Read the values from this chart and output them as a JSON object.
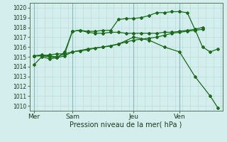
{
  "xlabel": "Pression niveau de la mer( hPa )",
  "bg_color": "#d4eeed",
  "grid_color_minor": "#b8d8d8",
  "grid_color_major": "#88b8b8",
  "line_color": "#1a6b1a",
  "ylim": [
    1009.5,
    1020.5
  ],
  "yticks": [
    1010,
    1011,
    1012,
    1013,
    1014,
    1015,
    1016,
    1017,
    1018,
    1019,
    1020
  ],
  "day_labels": [
    "Mer",
    "Sam",
    "Jeu",
    "Ven"
  ],
  "day_positions": [
    0.0,
    2.5,
    6.5,
    9.5
  ],
  "xlim": [
    -0.3,
    12.3
  ],
  "series1_x": [
    0,
    0.5,
    1.0,
    1.5,
    2.0,
    2.5,
    3.0,
    3.5,
    4.0,
    4.5,
    5.0,
    5.5,
    6.0,
    6.5,
    7.0,
    7.5,
    8.0,
    8.5,
    9.0,
    9.5,
    10.0,
    10.5,
    11.0
  ],
  "series1_y": [
    1015.1,
    1015.1,
    1015.2,
    1015.3,
    1015.3,
    1015.5,
    1015.6,
    1015.7,
    1015.9,
    1016.0,
    1016.1,
    1016.3,
    1016.5,
    1016.7,
    1016.8,
    1016.9,
    1017.0,
    1017.2,
    1017.4,
    1017.5,
    1017.6,
    1017.7,
    1017.8
  ],
  "series2_x": [
    0,
    0.5,
    1.0,
    1.5,
    2.0,
    2.5,
    3.0,
    3.5,
    4.0,
    4.5,
    5.0,
    5.5,
    6.0,
    6.5,
    7.0,
    7.5,
    8.0,
    8.5,
    9.0,
    9.5,
    10.0,
    10.5,
    11.0
  ],
  "series2_y": [
    1015.1,
    1015.1,
    1015.0,
    1014.9,
    1015.5,
    1017.6,
    1017.7,
    1017.5,
    1017.4,
    1017.4,
    1017.5,
    1017.5,
    1017.4,
    1017.4,
    1017.4,
    1017.4,
    1017.4,
    1017.5,
    1017.5,
    1017.6,
    1017.7,
    1017.8,
    1018.0
  ],
  "series3_x": [
    0,
    0.5,
    1.0,
    1.5,
    2.0,
    2.5,
    3.0,
    3.5,
    4.0,
    4.5,
    5.0,
    5.5,
    6.0,
    6.5,
    7.0,
    7.5,
    8.0,
    8.5,
    9.0,
    9.5,
    10.0,
    10.5,
    11.0,
    11.5,
    12.0
  ],
  "series3_y": [
    1015.1,
    1015.2,
    1015.1,
    1015.0,
    1015.3,
    1017.6,
    1017.7,
    1017.6,
    1017.6,
    1017.7,
    1017.7,
    1018.8,
    1018.9,
    1018.9,
    1019.0,
    1019.2,
    1019.5,
    1019.5,
    1019.6,
    1019.6,
    1019.5,
    1017.8,
    1016.0,
    1015.5,
    1015.8
  ],
  "series4_x": [
    0,
    0.5,
    1.0,
    1.5,
    2.0,
    2.5,
    3.5,
    4.5,
    5.5,
    6.5,
    7.5,
    8.5,
    9.5,
    10.5,
    11.5,
    12.0
  ],
  "series4_y": [
    1014.2,
    1015.0,
    1014.8,
    1014.9,
    1015.1,
    1015.5,
    1015.8,
    1016.0,
    1016.3,
    1017.0,
    1016.7,
    1016.0,
    1015.5,
    1013.0,
    1011.0,
    1009.8
  ]
}
